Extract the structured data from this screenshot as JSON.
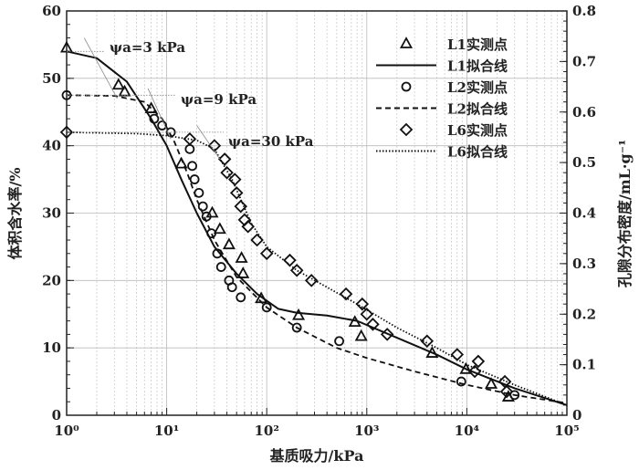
{
  "chart_data": {
    "type": "scatter",
    "xlabel": "基质吸力/kPa",
    "ylabel": "体积含水率/%",
    "y2label": "孔隙分布密度/mL·g⁻¹",
    "xscale": "log",
    "xlim": [
      1,
      100000
    ],
    "ylim": [
      0,
      60
    ],
    "y2lim": [
      0,
      0.8
    ],
    "xticks": [
      "10⁰",
      "10¹",
      "10²",
      "10³",
      "10⁴",
      "10⁵"
    ],
    "yticks": [
      "0",
      "10",
      "20",
      "30",
      "40",
      "50",
      "60"
    ],
    "y2ticks": [
      "0",
      "0.1",
      "0.2",
      "0.3",
      "0.4",
      "0.5",
      "0.6",
      "0.7",
      "0.8"
    ],
    "grid": true,
    "legend_position": "top-right",
    "annotations": [
      "ψa=3 kPa",
      "ψa=9 kPa",
      "ψa=30 kPa"
    ],
    "series": [
      {
        "name": "L1实测点",
        "kind": "points",
        "marker": "triangle",
        "x": [
          1,
          3.3,
          3.8,
          7,
          14,
          28.5,
          34,
          42,
          56,
          58,
          88,
          208,
          760,
          880,
          4500,
          9800,
          17500,
          26000
        ],
        "y": [
          54.5,
          49,
          48,
          45.5,
          37.3,
          30,
          27.6,
          25.3,
          23.3,
          21,
          17.3,
          14.8,
          13.8,
          11.7,
          9.2,
          6.8,
          4.6,
          2.7
        ]
      },
      {
        "name": "L1拟合线",
        "kind": "line",
        "style": "solid",
        "x": [
          1,
          2,
          4,
          7,
          10,
          14,
          20,
          30,
          50,
          80,
          130,
          200,
          400,
          800,
          2000,
          5000,
          10000,
          30000,
          100000
        ],
        "y": [
          54,
          53,
          49.5,
          44,
          40,
          35,
          30,
          25,
          21,
          18,
          15.8,
          15.2,
          14.8,
          14,
          11.5,
          9,
          6.8,
          4,
          1.5
        ]
      },
      {
        "name": "L2实测点",
        "kind": "points",
        "marker": "circle",
        "x": [
          1,
          7.5,
          9,
          11,
          17,
          18,
          19,
          21,
          23,
          25,
          28,
          32,
          35,
          42,
          45,
          55,
          100,
          200,
          530,
          8800,
          30000
        ],
        "y": [
          47.5,
          44,
          43,
          42,
          39.5,
          37,
          35,
          33,
          31,
          29.5,
          27,
          24,
          22,
          20,
          19,
          17.5,
          16,
          13,
          11,
          5,
          3
        ]
      },
      {
        "name": "L2拟合线",
        "kind": "line",
        "style": "dashed",
        "x": [
          1,
          3,
          6,
          9,
          12,
          16,
          20,
          30,
          50,
          100,
          200,
          500,
          1000,
          3000,
          10000,
          30000,
          100000
        ],
        "y": [
          47.5,
          47.4,
          46.5,
          44,
          40.5,
          36,
          32,
          26,
          20.5,
          16,
          13,
          10,
          8.5,
          6.5,
          4.5,
          3,
          1.8
        ]
      },
      {
        "name": "L6实测点",
        "kind": "points",
        "marker": "diamond",
        "x": [
          1,
          17,
          30,
          38,
          40,
          48,
          50,
          55,
          60,
          65,
          80,
          100,
          170,
          200,
          280,
          620,
          900,
          1000,
          1150,
          1600,
          4000,
          8000,
          13000,
          12000,
          24000,
          25000
        ],
        "y": [
          42,
          41,
          40,
          38,
          36,
          35,
          33,
          31,
          29,
          28,
          26,
          24,
          23,
          21.5,
          20,
          18,
          16.5,
          15,
          13.5,
          12,
          11,
          9,
          8,
          6.5,
          5,
          3.5
        ]
      },
      {
        "name": "L6拟合线",
        "kind": "line",
        "style": "dotted",
        "x": [
          1,
          5,
          10,
          20,
          30,
          45,
          70,
          100,
          200,
          400,
          800,
          2000,
          5000,
          10000,
          30000,
          100000
        ],
        "y": [
          42,
          41.8,
          41.5,
          40.8,
          39.5,
          35,
          28.5,
          25,
          21.5,
          19,
          16.5,
          13,
          10,
          7.5,
          4.5,
          1.5
        ]
      }
    ]
  }
}
